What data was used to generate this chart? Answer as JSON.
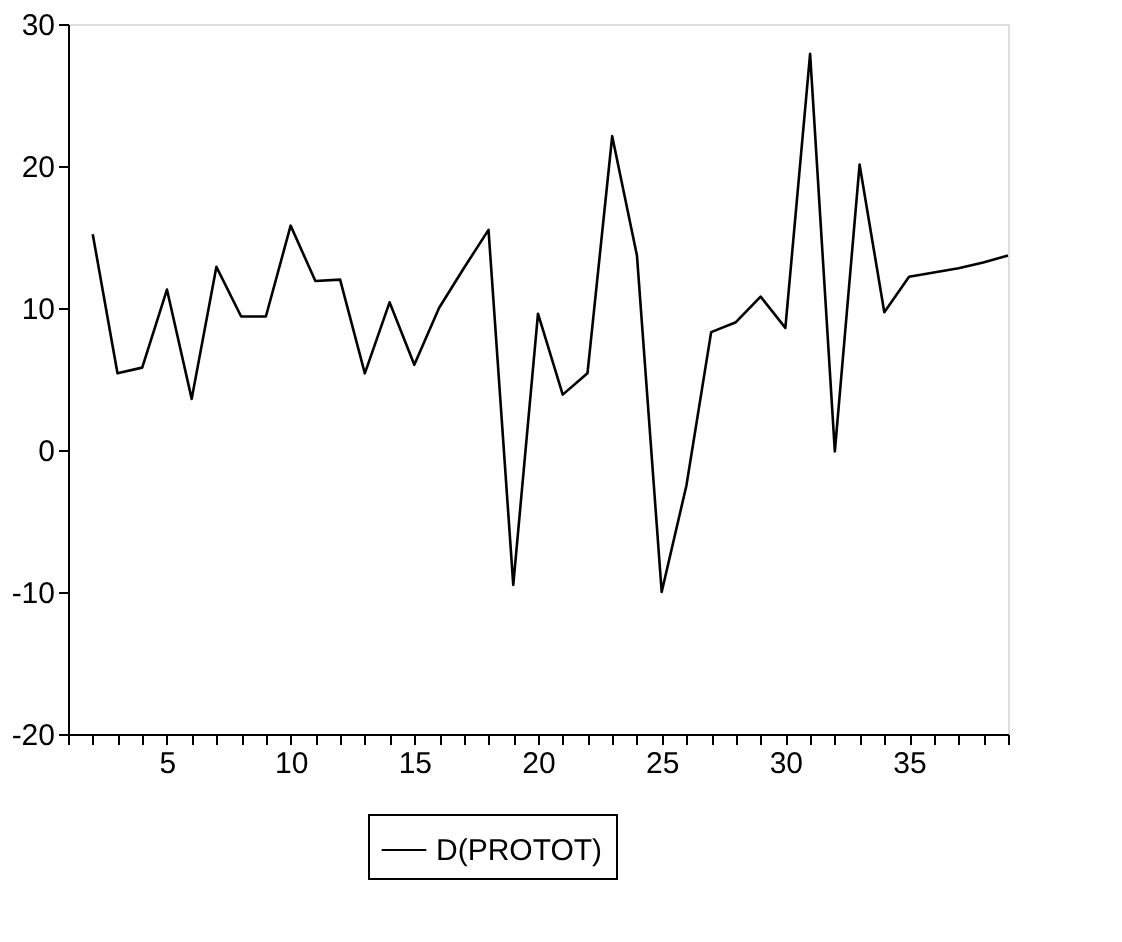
{
  "chart_data": {
    "type": "line",
    "x": [
      2,
      3,
      4,
      5,
      6,
      7,
      8,
      9,
      10,
      11,
      12,
      13,
      14,
      15,
      16,
      17,
      18,
      19,
      20,
      21,
      22,
      23,
      24,
      25,
      26,
      27,
      28,
      29,
      30,
      31,
      32,
      33,
      34,
      35,
      36,
      37,
      38,
      39
    ],
    "series": [
      {
        "name": "D(PROTOT)",
        "color": "#000000",
        "values": [
          15.2,
          5.4,
          5.8,
          11.3,
          3.6,
          12.9,
          9.4,
          9.4,
          15.8,
          11.9,
          12.0,
          5.4,
          10.4,
          6.0,
          10.0,
          12.8,
          15.5,
          -9.5,
          9.6,
          3.9,
          5.4,
          22.1,
          13.7,
          -10.0,
          -2.5,
          8.3,
          9.0,
          10.8,
          8.6,
          27.9,
          -0.1,
          20.1,
          9.7,
          12.2,
          12.5,
          12.8,
          13.2,
          13.7
        ]
      }
    ],
    "xlim": [
      1,
      39
    ],
    "xticks": [
      {
        "value": 1,
        "label": null
      },
      {
        "value": 2,
        "label": null
      },
      {
        "value": 3,
        "label": null
      },
      {
        "value": 4,
        "label": null
      },
      5,
      {
        "value": 6,
        "label": null
      },
      {
        "value": 7,
        "label": null
      },
      {
        "value": 8,
        "label": null
      },
      {
        "value": 9,
        "label": null
      },
      10,
      {
        "value": 11,
        "label": null
      },
      {
        "value": 12,
        "label": null
      },
      {
        "value": 13,
        "label": null
      },
      {
        "value": 14,
        "label": null
      },
      15,
      {
        "value": 16,
        "label": null
      },
      {
        "value": 17,
        "label": null
      },
      {
        "value": 18,
        "label": null
      },
      {
        "value": 19,
        "label": null
      },
      20,
      {
        "value": 21,
        "label": null
      },
      {
        "value": 22,
        "label": null
      },
      {
        "value": 23,
        "label": null
      },
      {
        "value": 24,
        "label": null
      },
      25,
      {
        "value": 26,
        "label": null
      },
      {
        "value": 27,
        "label": null
      },
      {
        "value": 28,
        "label": null
      },
      {
        "value": 29,
        "label": null
      },
      30,
      {
        "value": 31,
        "label": null
      },
      {
        "value": 32,
        "label": null
      },
      {
        "value": 33,
        "label": null
      },
      {
        "value": 34,
        "label": null
      },
      35,
      {
        "value": 36,
        "label": null
      },
      {
        "value": 37,
        "label": null
      },
      {
        "value": 38,
        "label": null
      },
      {
        "value": 39,
        "label": null
      }
    ],
    "ylim": [
      -20,
      30
    ],
    "yticks": [
      -20,
      -10,
      0,
      10,
      20,
      30
    ],
    "grid": false,
    "legend": "bottom",
    "marker": "none",
    "line_style": "solid"
  }
}
